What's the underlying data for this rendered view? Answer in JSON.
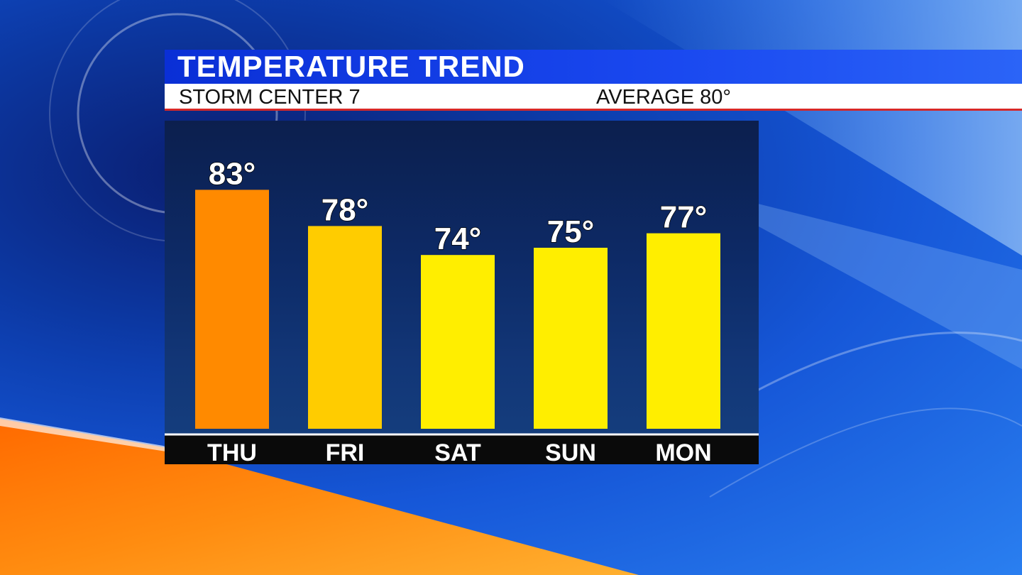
{
  "header": {
    "title": "TEMPERATURE TREND",
    "station": "STORM CENTER 7",
    "average": "AVERAGE 80°"
  },
  "colors": {
    "hot_bar": "#ff8a00",
    "warm_bar": "#ffcc00",
    "cool_bar": "#ffee00",
    "title_bar": "#1a49f0",
    "accent_red": "#d62828"
  },
  "chart_data": {
    "type": "bar",
    "title": "TEMPERATURE TREND",
    "categories": [
      "THU",
      "FRI",
      "SAT",
      "SUN",
      "MON"
    ],
    "values": [
      83,
      78,
      74,
      75,
      77
    ],
    "value_labels": [
      "83°",
      "78°",
      "74°",
      "75°",
      "77°"
    ],
    "bar_colors": [
      "#ff8a00",
      "#ffcc00",
      "#ffee00",
      "#ffee00",
      "#ffee00"
    ],
    "unit": "°",
    "ylim": [
      50,
      85
    ],
    "xlabel": "",
    "ylabel": "",
    "grid": false,
    "legend": "none"
  }
}
